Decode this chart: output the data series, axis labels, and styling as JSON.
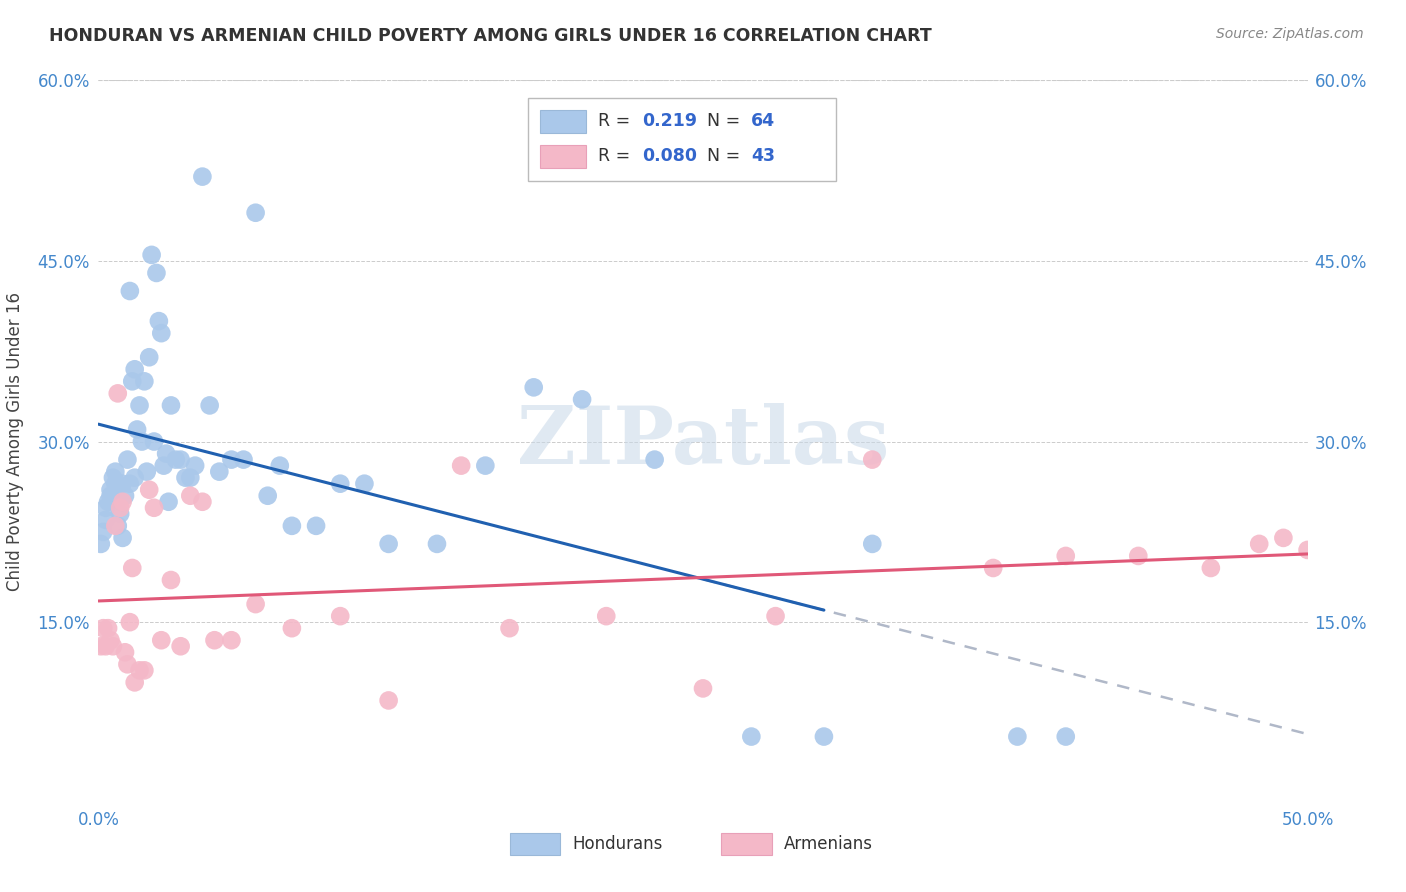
{
  "title": "HONDURAN VS ARMENIAN CHILD POVERTY AMONG GIRLS UNDER 16 CORRELATION CHART",
  "source": "Source: ZipAtlas.com",
  "ylabel": "Child Poverty Among Girls Under 16",
  "xlim": [
    0.0,
    0.5
  ],
  "ylim": [
    0.0,
    0.6
  ],
  "honduran_R": "0.219",
  "honduran_N": "64",
  "armenian_R": "0.080",
  "armenian_N": "43",
  "honduran_color": "#aac8ea",
  "armenian_color": "#f4b8c8",
  "honduran_line_color": "#2060b0",
  "armenian_line_color": "#e05878",
  "dashed_line_color": "#b0b8c8",
  "watermark": "ZIPatlas",
  "honduran_x": [
    0.001,
    0.002,
    0.003,
    0.003,
    0.004,
    0.005,
    0.005,
    0.006,
    0.007,
    0.007,
    0.008,
    0.009,
    0.01,
    0.01,
    0.011,
    0.012,
    0.013,
    0.013,
    0.014,
    0.015,
    0.015,
    0.016,
    0.017,
    0.018,
    0.019,
    0.02,
    0.021,
    0.022,
    0.023,
    0.024,
    0.025,
    0.026,
    0.027,
    0.028,
    0.029,
    0.03,
    0.032,
    0.034,
    0.036,
    0.038,
    0.04,
    0.043,
    0.046,
    0.05,
    0.055,
    0.06,
    0.065,
    0.07,
    0.075,
    0.08,
    0.09,
    0.1,
    0.11,
    0.12,
    0.14,
    0.16,
    0.18,
    0.2,
    0.23,
    0.27,
    0.3,
    0.32,
    0.38,
    0.4
  ],
  "honduran_y": [
    0.215,
    0.225,
    0.235,
    0.245,
    0.25,
    0.255,
    0.26,
    0.27,
    0.265,
    0.275,
    0.23,
    0.24,
    0.265,
    0.22,
    0.255,
    0.285,
    0.425,
    0.265,
    0.35,
    0.36,
    0.27,
    0.31,
    0.33,
    0.3,
    0.35,
    0.275,
    0.37,
    0.455,
    0.3,
    0.44,
    0.4,
    0.39,
    0.28,
    0.29,
    0.25,
    0.33,
    0.285,
    0.285,
    0.27,
    0.27,
    0.28,
    0.52,
    0.33,
    0.275,
    0.285,
    0.285,
    0.49,
    0.255,
    0.28,
    0.23,
    0.23,
    0.265,
    0.265,
    0.215,
    0.215,
    0.28,
    0.345,
    0.335,
    0.285,
    0.055,
    0.055,
    0.215,
    0.055,
    0.055
  ],
  "armenian_x": [
    0.001,
    0.002,
    0.003,
    0.004,
    0.005,
    0.006,
    0.007,
    0.008,
    0.009,
    0.01,
    0.011,
    0.012,
    0.013,
    0.014,
    0.015,
    0.017,
    0.019,
    0.021,
    0.023,
    0.026,
    0.03,
    0.034,
    0.038,
    0.043,
    0.048,
    0.055,
    0.065,
    0.08,
    0.1,
    0.12,
    0.15,
    0.17,
    0.21,
    0.25,
    0.28,
    0.32,
    0.37,
    0.4,
    0.43,
    0.46,
    0.48,
    0.49,
    0.5
  ],
  "armenian_y": [
    0.13,
    0.145,
    0.13,
    0.145,
    0.135,
    0.13,
    0.23,
    0.34,
    0.245,
    0.25,
    0.125,
    0.115,
    0.15,
    0.195,
    0.1,
    0.11,
    0.11,
    0.26,
    0.245,
    0.135,
    0.185,
    0.13,
    0.255,
    0.25,
    0.135,
    0.135,
    0.165,
    0.145,
    0.155,
    0.085,
    0.28,
    0.145,
    0.155,
    0.095,
    0.155,
    0.285,
    0.195,
    0.205,
    0.205,
    0.195,
    0.215,
    0.22,
    0.21
  ]
}
